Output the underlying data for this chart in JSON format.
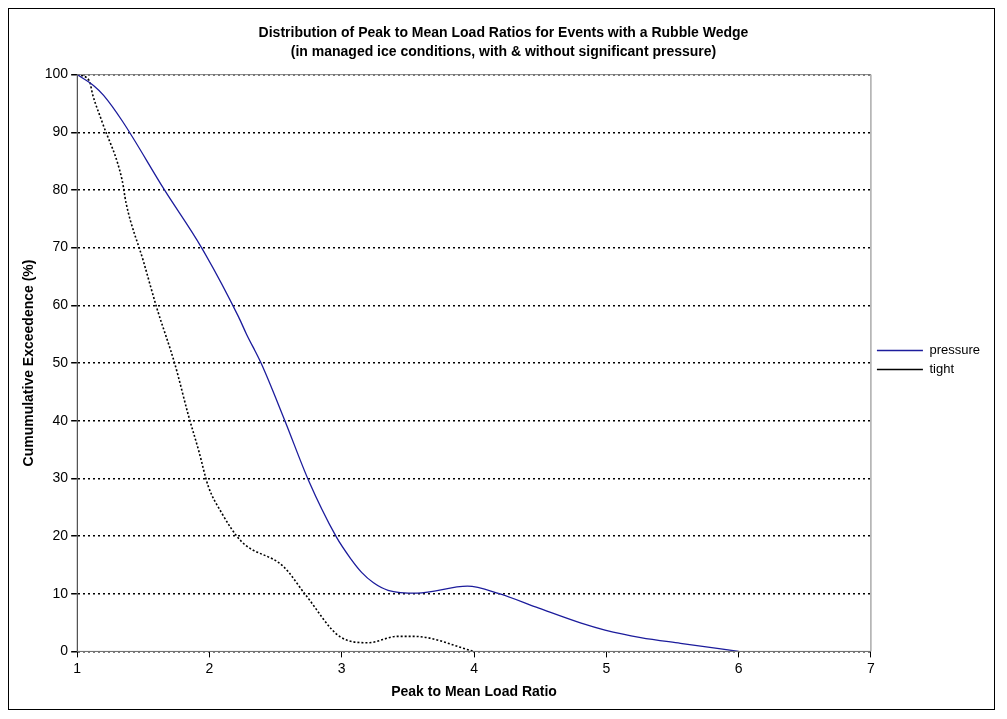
{
  "chart_data": {
    "type": "line",
    "title": "Distribution of Peak to Mean Load Ratios for Events with a Rubble Wedge",
    "subtitle": "(in managed ice conditions, with & without significant pressure)",
    "xlabel": "Peak to Mean Load Ratio",
    "ylabel": "Cumumulative Exceedence (%)",
    "xlim": [
      1,
      7
    ],
    "xticks": [
      1,
      2,
      3,
      4,
      5,
      6,
      7
    ],
    "ylim": [
      0,
      100
    ],
    "yticks": [
      0,
      10,
      20,
      30,
      40,
      50,
      60,
      70,
      80,
      90,
      100
    ],
    "grid": "y",
    "legend": "right",
    "marker": "none",
    "series": [
      {
        "name": "pressure",
        "color": "#1c1c9c",
        "line_style": "solid",
        "x": [
          1,
          1.13,
          1.2,
          1.34,
          1.66,
          1.94,
          2.22,
          2.28,
          2.39,
          2.57,
          2.75,
          2.96,
          3.07,
          3.15,
          3.24,
          3.35,
          3.57,
          3.95,
          4.19,
          4.49,
          4.81,
          4.99,
          5.26,
          5.56,
          6
        ],
        "values": [
          100,
          98,
          96.4,
          92,
          80,
          70,
          58,
          55,
          50,
          40,
          29.6,
          19.8,
          16,
          13.7,
          11.9,
          10.6,
          10.1,
          11.3,
          10,
          7.5,
          4.9,
          3.7,
          2.4,
          1.4,
          0
        ]
      },
      {
        "name": "tight",
        "color": "#000000",
        "line_style": "dotted",
        "x": [
          1,
          1.09,
          1.12,
          1.19,
          1.34,
          1.37,
          1.5,
          1.6,
          1.74,
          1.84,
          1.92,
          1.99,
          2.09,
          2.24,
          2.56,
          2.73,
          2.99,
          3.2,
          3.42,
          3.55,
          4
        ],
        "values": [
          100,
          99,
          96.3,
          91.7,
          81.7,
          77.7,
          67.7,
          59.7,
          49.7,
          41,
          34.7,
          28.7,
          24.1,
          19.1,
          14.7,
          9.7,
          2.5,
          1.5,
          2.6,
          2.6,
          0
        ]
      }
    ]
  }
}
